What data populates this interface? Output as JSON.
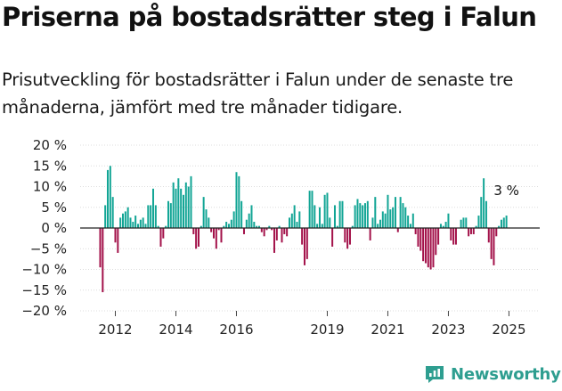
{
  "title": "Priserna på bostadsrätter steg i Falun",
  "subtitle": "Prisutveckling för bostadsrätter i Falun under de senaste tre månaderna, jämfört med tre månader tidigare.",
  "brand": {
    "name": "Newsworthy",
    "color": "#2e9e90"
  },
  "colors": {
    "positive": "#12a595",
    "negative": "#a3124a"
  },
  "chart_data": {
    "type": "bar",
    "title": "",
    "xlabel": "",
    "ylabel": "",
    "ylim": [
      -20,
      20
    ],
    "yticks": [
      20,
      15,
      10,
      5,
      0,
      -5,
      -10,
      -15,
      -20
    ],
    "ytick_labels": [
      "20 %",
      "15 %",
      "10 %",
      "5 %",
      "0 %",
      "−5 %",
      "−10 %",
      "−15 %",
      "−20 %"
    ],
    "xticks": [
      {
        "label": "2012",
        "index": 6
      },
      {
        "label": "2014",
        "index": 30
      },
      {
        "label": "2016",
        "index": 54
      },
      {
        "label": "2019",
        "index": 90
      },
      {
        "label": "2021",
        "index": 114
      },
      {
        "label": "2023",
        "index": 138
      },
      {
        "label": "2025",
        "index": 162
      }
    ],
    "annotation": "3 %",
    "values": [
      -9.5,
      -15.5,
      5.5,
      14,
      15,
      7.5,
      -3.5,
      -6,
      2.5,
      3.5,
      4,
      5,
      2.5,
      1.5,
      3,
      1,
      2,
      2.5,
      1,
      5.5,
      5.5,
      9.5,
      5.5,
      0.5,
      -4.5,
      -2.5,
      0.5,
      6.5,
      6,
      11,
      9.5,
      12,
      9.5,
      8,
      11,
      10,
      12.5,
      -1.5,
      -5,
      -4.5,
      0.5,
      7.5,
      4.5,
      2.5,
      -1,
      -2.5,
      -5,
      -0.5,
      -3.5,
      0.5,
      1.5,
      1,
      2,
      4,
      13.5,
      12.5,
      6.5,
      -1.5,
      2,
      3.5,
      5.5,
      1.5,
      0.5,
      0.5,
      -1,
      -2,
      -0.5,
      0.5,
      -0.5,
      -6,
      -3,
      0.5,
      -3.5,
      -1.5,
      -2,
      2.5,
      3.5,
      5.5,
      1.5,
      4,
      -4,
      -9,
      -7.5,
      9,
      9,
      5.5,
      1,
      5,
      1,
      8,
      8.5,
      2.5,
      -4.5,
      5.5,
      0.5,
      6.5,
      6.5,
      -3.5,
      -5,
      -4,
      0.5,
      5.5,
      7,
      6,
      5.5,
      6,
      6.5,
      -3,
      2.5,
      7.5,
      1,
      2,
      4,
      3.5,
      8,
      4.5,
      5,
      7.5,
      -1,
      7.5,
      6,
      5,
      3,
      1,
      3.5,
      -1.5,
      -4.5,
      -5.5,
      -8,
      -8.5,
      -9.5,
      -10,
      -9.5,
      -6.5,
      -4,
      1,
      0.5,
      1.5,
      3.5,
      -3,
      -4,
      -4,
      0,
      2,
      2.5,
      2.5,
      -2,
      -1.5,
      -1.5,
      0.5,
      3,
      7.5,
      12,
      6.5,
      -3.5,
      -7.5,
      -9,
      -2,
      0.5,
      2,
      2.5,
      3
    ]
  }
}
